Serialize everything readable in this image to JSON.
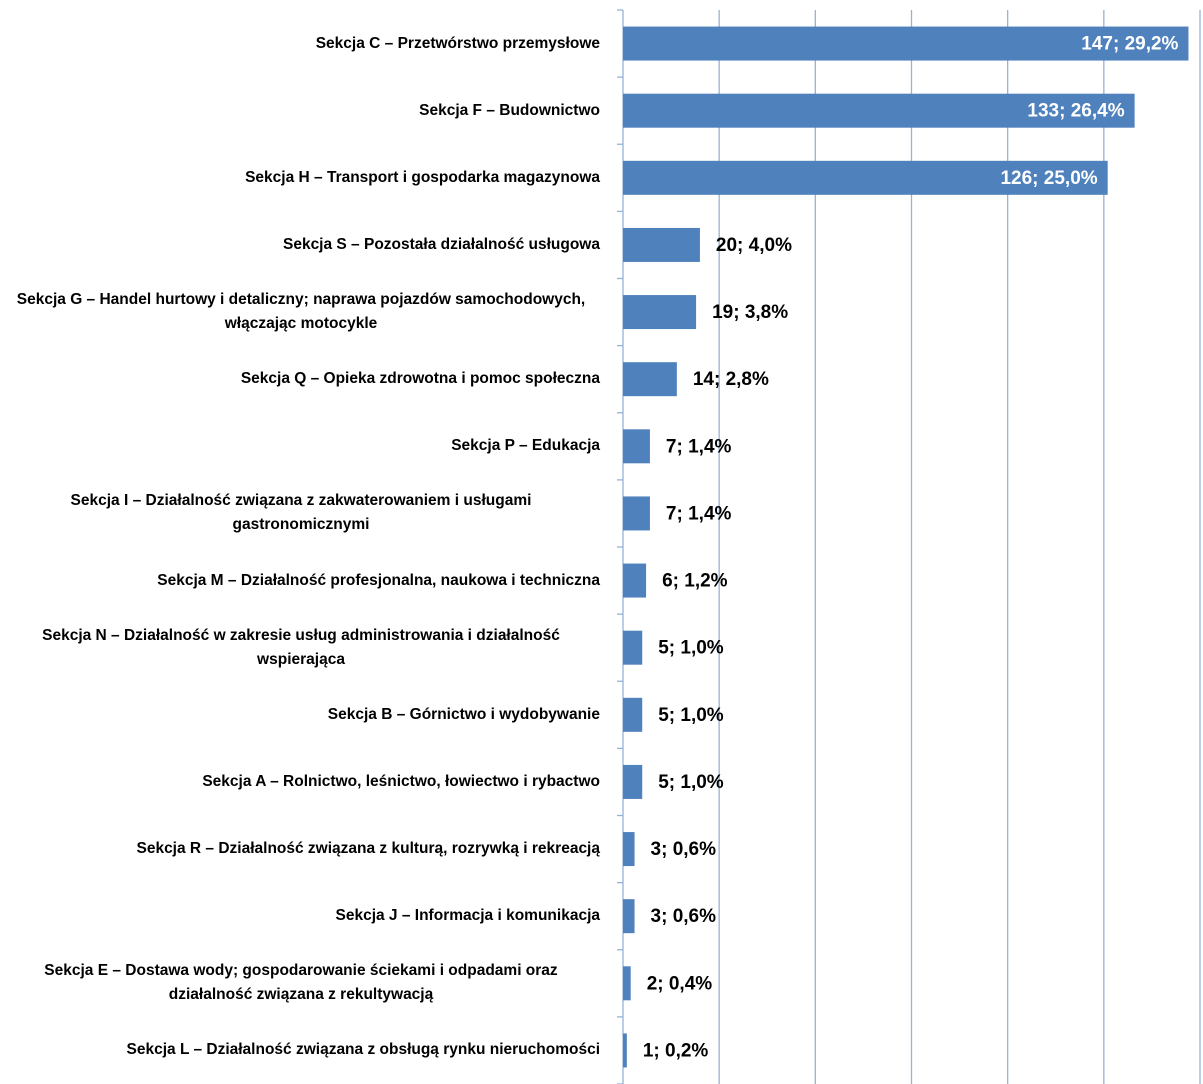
{
  "chart_data": {
    "type": "bar",
    "orientation": "horizontal",
    "categories": [
      "Sekcja C – Przetwórstwo przemysłowe",
      "Sekcja F – Budownictwo",
      "Sekcja H – Transport i gospodarka magazynowa",
      "Sekcja S – Pozostała działalność usługowa",
      "Sekcja G – Handel hurtowy i detaliczny; naprawa pojazdów samochodowych, włączając motocykle",
      "Sekcja Q – Opieka zdrowotna i pomoc społeczna",
      "Sekcja P – Edukacja",
      "Sekcja I – Działalność związana z zakwaterowaniem i usługami gastronomicznymi",
      "Sekcja M – Działalność profesjonalna, naukowa i techniczna",
      "Sekcja N – Działalność w zakresie usług administrowania i działalność wspierająca",
      "Sekcja B – Górnictwo i wydobywanie",
      "Sekcja A – Rolnictwo, leśnictwo, łowiectwo i rybactwo",
      "Sekcja R – Działalność związana z kulturą, rozrywką i rekreacją",
      "Sekcja J – Informacja i komunikacja",
      "Sekcja E – Dostawa wody; gospodarowanie ściekami i odpadami oraz działalność związana z rekultywacją",
      "Sekcja L – Działalność związana z obsługą rynku nieruchomości"
    ],
    "values": [
      147,
      133,
      126,
      20,
      19,
      14,
      7,
      7,
      6,
      5,
      5,
      5,
      3,
      3,
      2,
      1
    ],
    "value_labels": [
      "147; 29,2%",
      "133; 26,4%",
      "126; 25,0%",
      "20; 4,0%",
      "19; 3,8%",
      "14; 2,8%",
      "7; 1,4%",
      "7; 1,4%",
      "6; 1,2%",
      "5; 1,0%",
      "5; 1,0%",
      "5; 1,0%",
      "3; 0,6%",
      "3; 0,6%",
      "2; 0,4%",
      "1; 0,2%"
    ],
    "color": "#4f81bd",
    "xlim": [
      0,
      150
    ],
    "xticks": [
      0,
      25,
      50,
      75,
      100,
      125,
      150
    ],
    "grid": true
  }
}
